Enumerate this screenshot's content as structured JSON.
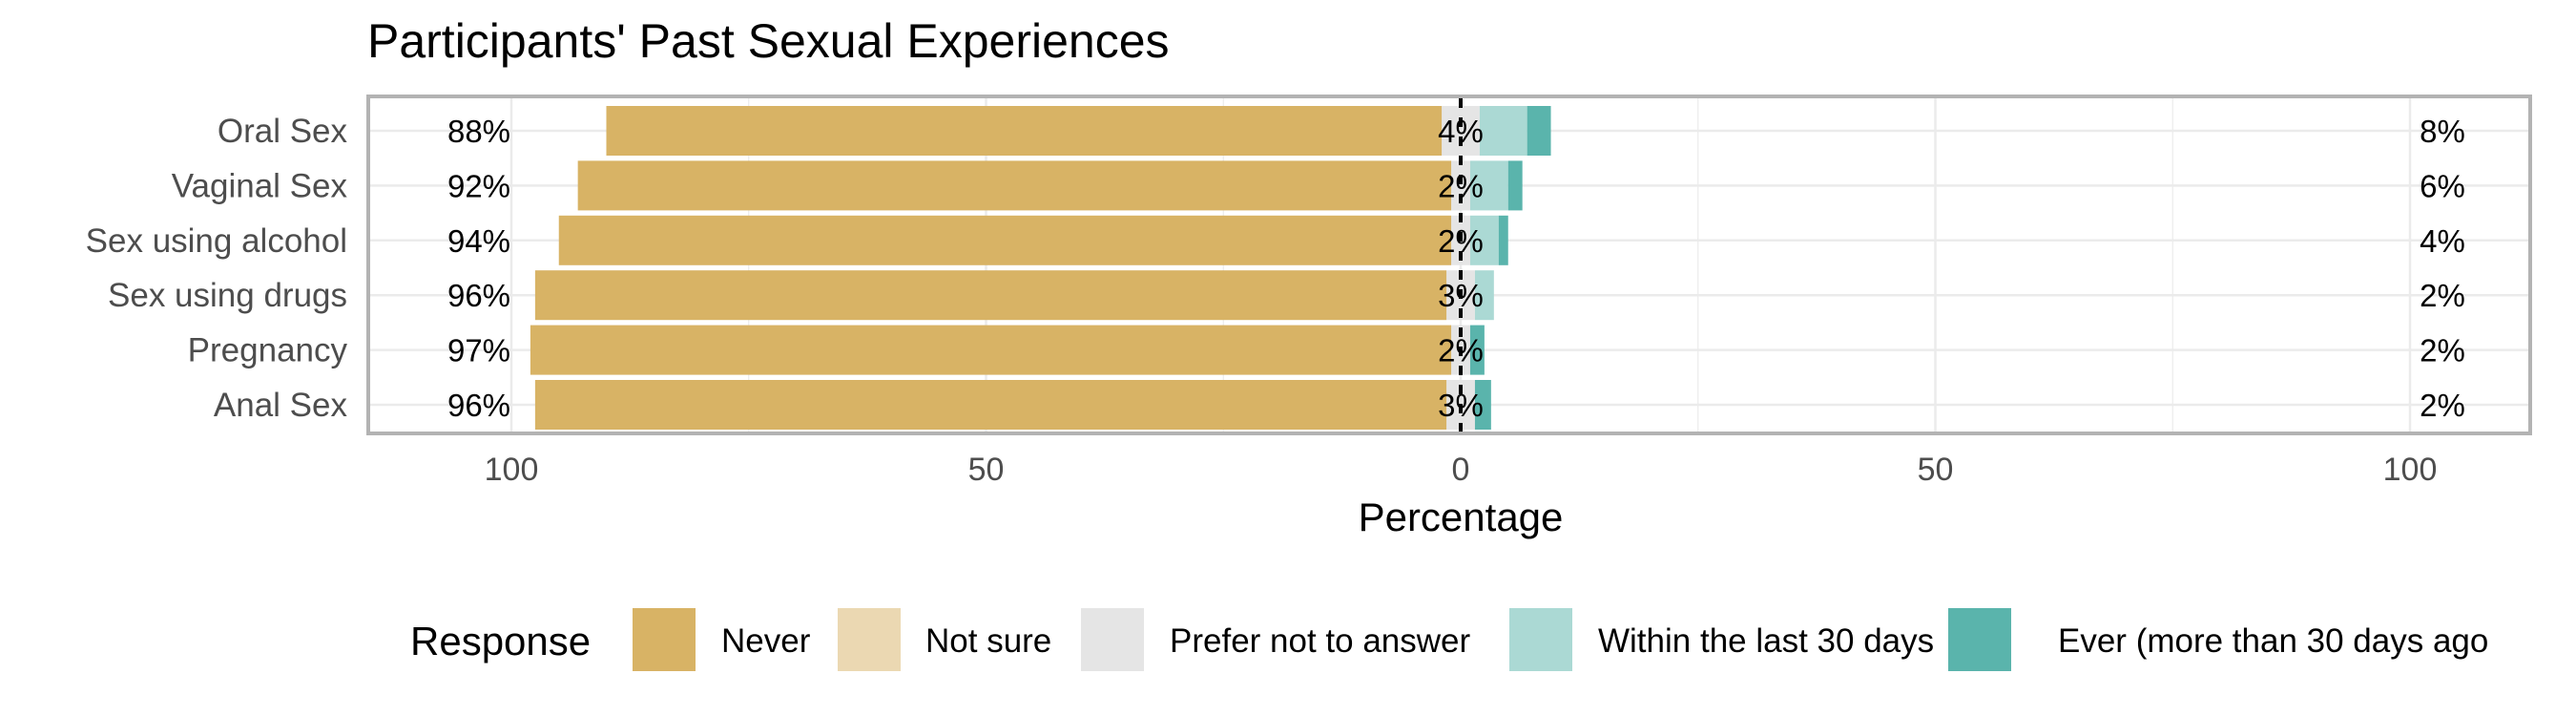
{
  "chart_data": {
    "type": "bar",
    "orientation": "horizontal-diverging",
    "title": "Participants' Past Sexual Experiences",
    "xlabel": "Percentage",
    "xlim": [
      -110,
      110
    ],
    "xticks": [
      {
        "value": -100,
        "label": "100"
      },
      {
        "value": -50,
        "label": "50"
      },
      {
        "value": 0,
        "label": "0"
      },
      {
        "value": 50,
        "label": "50"
      },
      {
        "value": 100,
        "label": "100"
      }
    ],
    "grid": true,
    "legend_position": "bottom",
    "legend_title": "Response",
    "categories": [
      "Oral Sex",
      "Vaginal Sex",
      "Sex using alcohol",
      "Sex using drugs",
      "Pregnancy",
      "Anal Sex"
    ],
    "series": [
      {
        "name": "Never",
        "color": "#D8B365",
        "values": [
          88,
          92,
          94,
          96,
          97,
          96
        ]
      },
      {
        "name": "Not sure",
        "color": "#EBD8B2",
        "values": [
          0,
          0,
          0,
          0,
          0,
          0
        ]
      },
      {
        "name": "Prefer not to answer",
        "color": "#E5E5E5",
        "values": [
          4,
          2,
          2,
          3,
          2,
          3
        ]
      },
      {
        "name": "Within the last 30 days",
        "color": "#ABD9D4",
        "values": [
          5,
          4,
          3,
          2,
          0,
          0
        ]
      },
      {
        "name": "Ever (more than 30 days ago",
        "color": "#5AB4AC",
        "values": [
          2.5,
          1.5,
          1,
          0,
          1.5,
          1.7
        ]
      }
    ],
    "left_labels": [
      "88%",
      "92%",
      "94%",
      "96%",
      "97%",
      "96%"
    ],
    "center_labels": [
      "4%",
      "2%",
      "2%",
      "3%",
      "2%",
      "3%"
    ],
    "right_labels": [
      "8%",
      "6%",
      "4%",
      "2%",
      "2%",
      "2%"
    ]
  }
}
